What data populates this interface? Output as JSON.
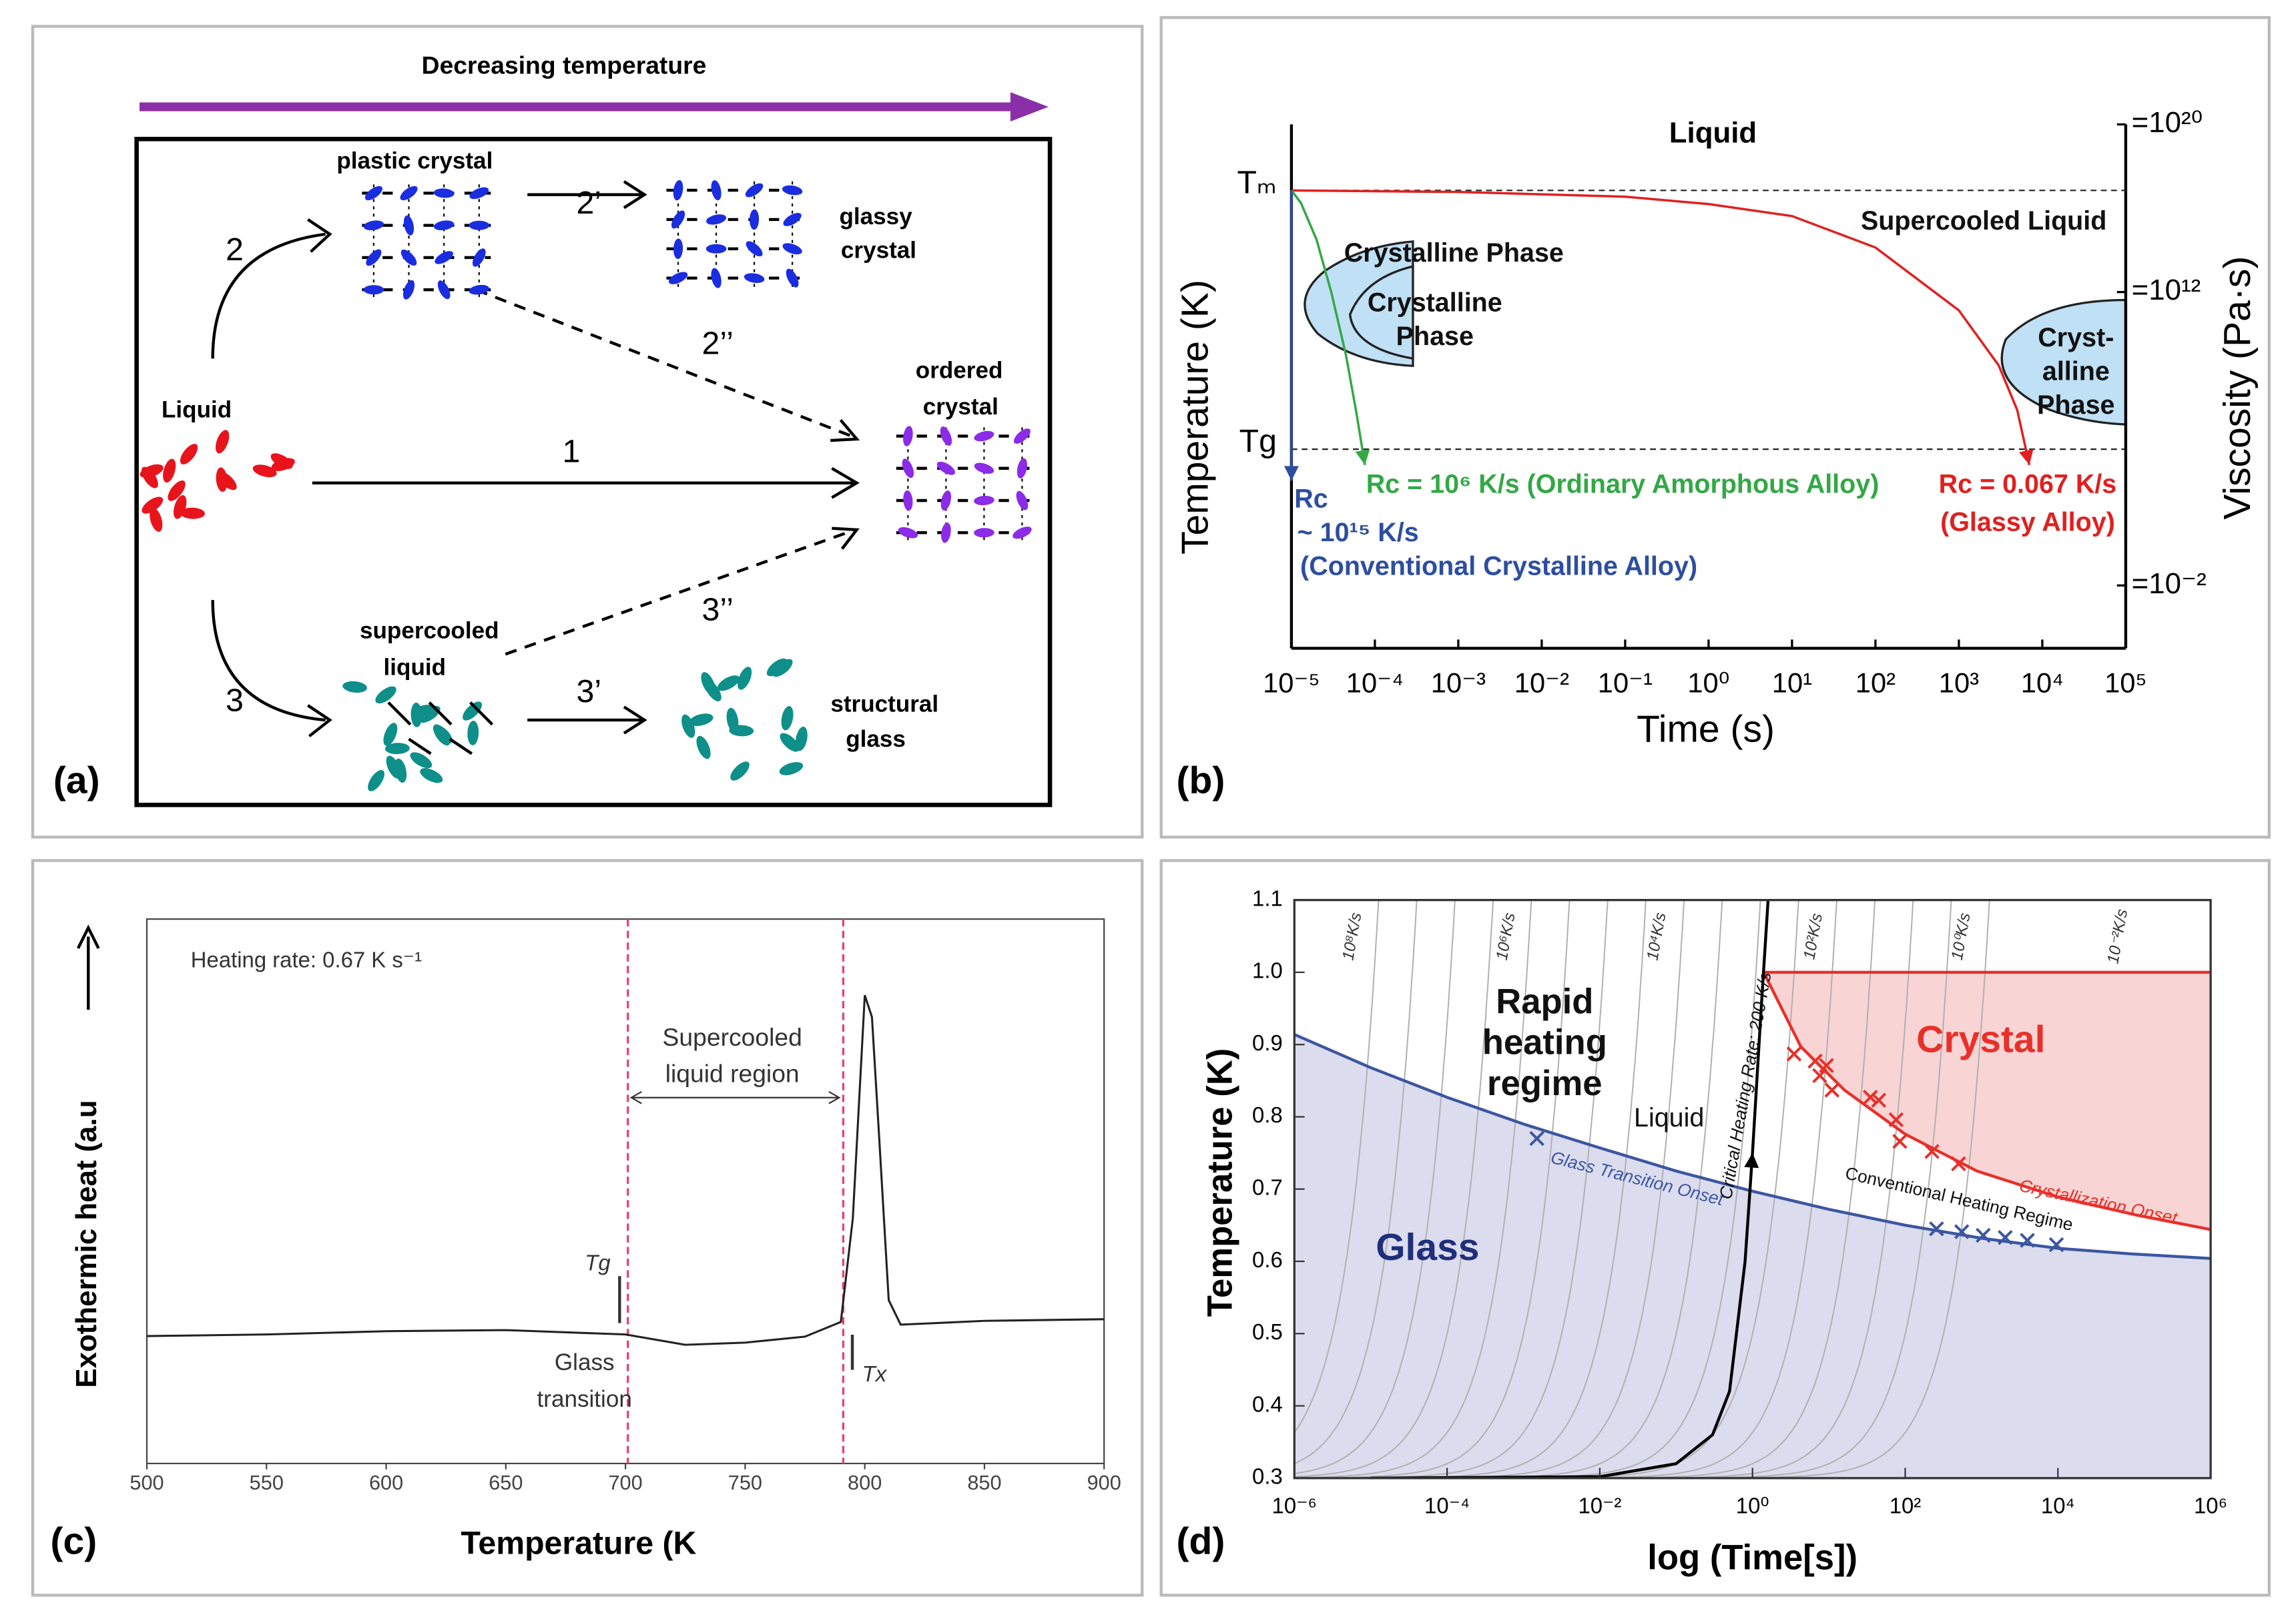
{
  "diagram": {
    "panel_label": "(a)",
    "title": "Decreasing temperature",
    "nodes": [
      {
        "label": [
          "Liquid"
        ]
      },
      {
        "label": [
          "plastic crystal"
        ]
      },
      {
        "label": [
          "glassy",
          "crystal"
        ]
      },
      {
        "label": [
          "ordered",
          "crystal"
        ]
      },
      {
        "label": [
          "supercooled",
          "liquid"
        ]
      },
      {
        "label": [
          "structural",
          "glass"
        ]
      }
    ],
    "edges": [
      {
        "label": "2"
      },
      {
        "label": "2’"
      },
      {
        "label": "2’’"
      },
      {
        "label": "1"
      },
      {
        "label": "3"
      },
      {
        "label": "3’"
      },
      {
        "label": "3’’"
      }
    ]
  },
  "chart_data": [
    {
      "type": "line",
      "panel_label": "(b)",
      "title": "Liquid",
      "xlabel": "Time (s)",
      "ylabel": "Temperature (K)",
      "y2label": "Viscosity (Pa·s)",
      "xscale": "log",
      "xlim": [
        1e-05,
        100000
      ],
      "xticks": [
        {
          "value": 1e-05,
          "label": "10⁻⁵"
        },
        {
          "value": 0.0001,
          "label": "10⁻⁴"
        },
        {
          "value": 0.001,
          "label": "10⁻³"
        },
        {
          "value": 0.01,
          "label": "10⁻²"
        },
        {
          "value": 0.1,
          "label": "10⁻¹"
        },
        {
          "value": 1,
          "label": "10⁰"
        },
        {
          "value": 10,
          "label": "10¹"
        },
        {
          "value": 100,
          "label": "10²"
        },
        {
          "value": 1000,
          "label": "10³"
        },
        {
          "value": 10000,
          "label": "10⁴"
        },
        {
          "value": 100000,
          "label": "10⁵"
        }
      ],
      "ylim": [
        0,
        1
      ],
      "yticks": [
        {
          "value": 0.874,
          "label": "Tₘ"
        },
        {
          "value": 0.38,
          "label": "Tg"
        }
      ],
      "y2lim": [
        -5,
        20
      ],
      "y2ticks": [
        {
          "value": -2,
          "label": "=10⁻²"
        },
        {
          "value": 12,
          "label": "=10¹²"
        },
        {
          "value": 20,
          "label": "=10²⁰"
        }
      ],
      "series": [
        {
          "color": "#e02020",
          "x": [
            1e-05,
            0.001,
            0.1,
            1,
            10,
            100,
            1000,
            3000,
            5000,
            7000
          ],
          "values": [
            0.874,
            0.871,
            0.862,
            0.848,
            0.825,
            0.765,
            0.645,
            0.54,
            0.455,
            0.35
          ]
        },
        {
          "color": "#33a845",
          "x": [
            1e-05,
            1.3e-05,
            2e-05,
            3e-05,
            4.5e-05,
            6e-05,
            7.6e-05
          ],
          "values": [
            0.874,
            0.85,
            0.78,
            0.68,
            0.56,
            0.45,
            0.35
          ]
        },
        {
          "color": "#2d4ea0",
          "x": [
            1e-05,
            1e-05
          ],
          "values": [
            0.874,
            0.32
          ]
        }
      ],
      "annotations": [
        {
          "lines": [
            "Supercooled Liquid"
          ]
        },
        {
          "lines": [
            "Crystalline Phase"
          ]
        },
        {
          "lines": [
            "Crystalline",
            "Phase"
          ]
        },
        {
          "lines": [
            "Cryst-",
            "alline",
            "Phase"
          ]
        },
        {
          "lines": [
            "Rc = 10⁶ K/s (Ordinary Amorphous Alloy)"
          ],
          "color": "#33a845"
        },
        {
          "lines": [
            "Rc",
            "~ 10¹⁵ K/s",
            "(Conventional Crystalline Alloy)"
          ],
          "color": "#2d4ea0"
        },
        {
          "lines": [
            "Rc = 0.067 K/s",
            "(Glassy Alloy)"
          ],
          "color": "#e02020"
        }
      ]
    },
    {
      "type": "line",
      "panel_label": "(c)",
      "xlabel": "Temperature (K",
      "ylabel": "Exothermic heat (a.u",
      "xlim": [
        500,
        900
      ],
      "xticks": [
        500,
        550,
        600,
        650,
        700,
        750,
        800,
        850,
        900
      ],
      "ylim": [
        0,
        1
      ],
      "series": [
        {
          "color": "#222222",
          "x": [
            500,
            550,
            600,
            650,
            700,
            725,
            750,
            775,
            790,
            795,
            800,
            803,
            806,
            810,
            815,
            850,
            900
          ],
          "values": [
            0.234,
            0.237,
            0.243,
            0.245,
            0.237,
            0.218,
            0.222,
            0.233,
            0.26,
            0.45,
            0.86,
            0.82,
            0.6,
            0.3,
            0.255,
            0.262,
            0.265
          ]
        }
      ],
      "vlines": [
        701,
        791
      ],
      "vline_color": "#e8407a",
      "annotations": [
        {
          "lines": [
            "Heating rate: 0.67 K s⁻¹"
          ]
        },
        {
          "lines": [
            "Supercooled",
            "liquid region"
          ]
        },
        {
          "lines": [
            "Tg"
          ]
        },
        {
          "lines": [
            "Glass",
            "transition"
          ]
        },
        {
          "lines": [
            "Tx"
          ]
        }
      ]
    },
    {
      "type": "line",
      "panel_label": "(d)",
      "xlabel": "log (Time[s])",
      "ylabel": "Temperature (K)",
      "xscale": "log",
      "xlim": [
        1e-06,
        1000000
      ],
      "xticks": [
        {
          "value": 1e-06,
          "label": "10⁻⁶"
        },
        {
          "value": 0.0001,
          "label": "10⁻⁴"
        },
        {
          "value": 0.01,
          "label": "10⁻²"
        },
        {
          "value": 1,
          "label": "10⁰"
        },
        {
          "value": 100,
          "label": "10²"
        },
        {
          "value": 10000,
          "label": "10⁴"
        },
        {
          "value": 1000000,
          "label": "10⁶"
        }
      ],
      "ylim": [
        0.3,
        1.1
      ],
      "yticks": [
        0.3,
        0.4,
        0.5,
        0.6,
        0.7,
        0.8,
        0.9,
        {
          "value": 1,
          "label": "1.0"
        },
        1.1
      ],
      "series": [
        {
          "color": "#e8302a",
          "fill": "#f9d4d4",
          "x": [
            1.4,
            1000000
          ],
          "values": [
            1,
            1
          ]
        },
        {
          "color": "#e8302a",
          "fill": "#ffffff",
          "x": [
            1.4,
            4.3,
            16,
            100,
            870,
            10000,
            107000,
            1000000
          ],
          "values": [
            1,
            0.897,
            0.837,
            0.776,
            0.725,
            0.689,
            0.664,
            0.644
          ]
        },
        {
          "color": "#3c56a0",
          "fill": "#dcdcef",
          "x": [
            1e-06,
            1e-05,
            0.0001,
            0.001,
            0.01,
            0.1,
            1,
            10,
            100,
            1000,
            10000,
            100000,
            1000000
          ],
          "values": [
            0.914,
            0.868,
            0.827,
            0.79,
            0.757,
            0.725,
            0.697,
            0.672,
            0.65,
            0.632,
            0.618,
            0.61,
            0.604
          ]
        },
        {
          "color": "#000000",
          "arrow": true,
          "x": [
            1e-05,
            0.01,
            0.1,
            0.3,
            0.5,
            0.8,
            1,
            1.3,
            1.6
          ],
          "values": [
            0.3,
            0.302,
            0.32,
            0.36,
            0.42,
            0.6,
            0.75,
            0.95,
            1.1
          ]
        }
      ],
      "markers": [
        {
          "color": "#e8302a",
          "x": [
            3.5,
            6.6,
            7.6,
            9.3,
            11,
            35,
            45,
            76,
            85,
            224,
            500
          ],
          "values": [
            0.887,
            0.877,
            0.857,
            0.871,
            0.837,
            0.827,
            0.823,
            0.796,
            0.766,
            0.752,
            0.735
          ]
        },
        {
          "color": "#3c56a0",
          "x": [
            0.0015,
            257,
            550,
            1050,
            2040,
            3980,
            9550
          ],
          "values": [
            0.77,
            0.645,
            0.641,
            0.636,
            0.633,
            0.629,
            0.623
          ]
        }
      ],
      "rate_labels": [
        "10⁸K/s",
        "10⁶K/s",
        "10⁴K/s",
        "10²K/s",
        "10⁰K/s",
        "10⁻²K/s"
      ],
      "annotations": [
        {
          "lines": [
            "Rapid",
            "heating",
            "regime"
          ]
        },
        {
          "lines": [
            "Liquid"
          ]
        },
        {
          "lines": [
            "Crystal"
          ],
          "color": "#e8302a"
        },
        {
          "lines": [
            "Glass"
          ],
          "color": "#1f2f7a"
        },
        {
          "lines": [
            "Glass Transition Onset"
          ],
          "color": "#3c56a0"
        },
        {
          "lines": [
            "Crystallization Onset"
          ],
          "color": "#e8302a"
        },
        {
          "lines": [
            "Conventional Heating Regime"
          ]
        },
        {
          "lines": [
            "Critical Heating Rate: 200 K/s"
          ]
        }
      ]
    }
  ]
}
